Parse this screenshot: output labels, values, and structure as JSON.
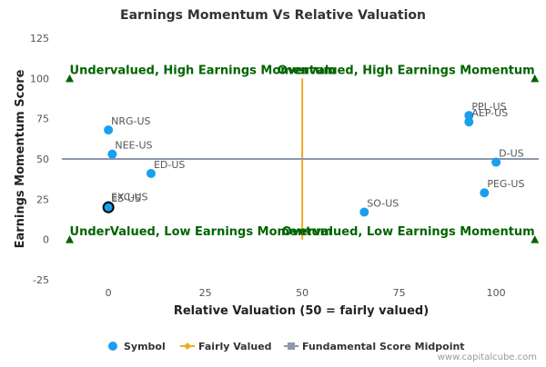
{
  "chart_data": {
    "type": "scatter",
    "title": "Earnings Momentum Vs Relative Valuation",
    "xlabel": "Relative Valuation (50 = fairly valued)",
    "ylabel": "Earnings Momentum Score",
    "xlim": [
      -12,
      111
    ],
    "ylim": [
      -25,
      125
    ],
    "x_ticks": [
      0,
      25,
      50,
      75,
      100
    ],
    "y_ticks": [
      -25,
      0,
      25,
      50,
      75,
      100,
      125
    ],
    "grid": false,
    "legend_position": "bottom",
    "colors": {
      "symbol": "#1a9fef",
      "fairly_valued": "#f5a623",
      "midpoint": "#8c98aa",
      "quadrant_text": "#006400",
      "triangle": "#006400"
    },
    "points": [
      {
        "label": "NRG-US",
        "x": 0,
        "y": 68
      },
      {
        "label": "NEE-US",
        "x": 1,
        "y": 53
      },
      {
        "label": "ED-US",
        "x": 11,
        "y": 41
      },
      {
        "label": "EXC-US",
        "x": 0,
        "y": 21
      },
      {
        "label": "ES-US",
        "x": 0,
        "y": 20,
        "highlighted": true
      },
      {
        "label": "PPL-US",
        "x": 93,
        "y": 77
      },
      {
        "label": "AEP-US",
        "x": 93,
        "y": 73
      },
      {
        "label": "D-US",
        "x": 100,
        "y": 48
      },
      {
        "label": "PEG-US",
        "x": 97,
        "y": 29
      },
      {
        "label": "SO-US",
        "x": 66,
        "y": 17
      }
    ],
    "fairly_valued_line": {
      "x": 50,
      "y_range": [
        0,
        100
      ]
    },
    "midpoint_line": {
      "y": 50,
      "x_range": [
        -12,
        111
      ]
    },
    "triangle_markers": [
      {
        "x": -10,
        "y": 100
      },
      {
        "x": 110,
        "y": 100
      },
      {
        "x": -10,
        "y": 0
      },
      {
        "x": 110,
        "y": 0
      }
    ],
    "quadrant_labels": [
      {
        "text": "Undervalued, High Earnings Momentum",
        "x": -10,
        "y": 105,
        "anchor": "start"
      },
      {
        "text": "Overvalued, High Earnings Momentum",
        "x": 110,
        "y": 105,
        "anchor": "end"
      },
      {
        "text": "UnderValued, Low Earnings Momentum",
        "x": -10,
        "y": 5,
        "anchor": "start"
      },
      {
        "text": "Overvalued, Low Earnings Momentum",
        "x": 110,
        "y": 5,
        "anchor": "end"
      }
    ],
    "legend": [
      {
        "label": "Symbol",
        "marker": "circle"
      },
      {
        "label": "Fairly Valued",
        "marker": "diamond-line"
      },
      {
        "label": "Fundamental Score Midpoint",
        "marker": "square-line"
      }
    ]
  },
  "credit": "www.capitalcube.com"
}
